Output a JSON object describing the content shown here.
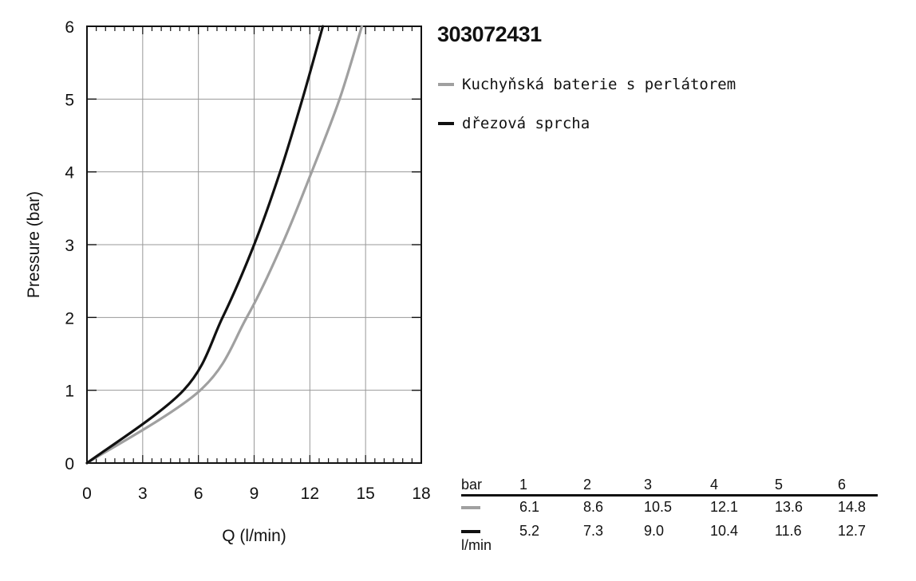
{
  "product_id": "303072431",
  "chart_data": {
    "type": "line",
    "xlabel": "Q (l/min)",
    "ylabel": "Pressure (bar)",
    "xlim": [
      0,
      18
    ],
    "ylim": [
      0,
      6
    ],
    "x_ticks": [
      0,
      3,
      6,
      9,
      12,
      15,
      18
    ],
    "y_ticks": [
      0,
      1,
      2,
      3,
      4,
      5,
      6
    ],
    "grid": true,
    "series": [
      {
        "name": "Kuchyňská baterie s perlátorem",
        "color": "#a0a0a0",
        "points": [
          [
            0,
            0
          ],
          [
            6.1,
            1
          ],
          [
            8.6,
            2
          ],
          [
            10.5,
            3
          ],
          [
            12.1,
            4
          ],
          [
            13.6,
            5
          ],
          [
            14.8,
            6
          ]
        ]
      },
      {
        "name": "dřezová sprcha",
        "color": "#111111",
        "points": [
          [
            0,
            0
          ],
          [
            5.2,
            1
          ],
          [
            7.3,
            2
          ],
          [
            9.0,
            3
          ],
          [
            10.4,
            4
          ],
          [
            11.6,
            5
          ],
          [
            12.7,
            6
          ]
        ]
      }
    ]
  },
  "table": {
    "unit_top": "bar",
    "unit_bottom": "l/min",
    "columns": [
      "1",
      "2",
      "3",
      "4",
      "5",
      "6"
    ],
    "rows": [
      {
        "color": "#a0a0a0",
        "values": [
          "6.1",
          "8.6",
          "10.5",
          "12.1",
          "13.6",
          "14.8"
        ]
      },
      {
        "color": "#111111",
        "values": [
          "5.2",
          "7.3",
          "9.0",
          "10.4",
          "11.6",
          "12.7"
        ]
      }
    ]
  }
}
